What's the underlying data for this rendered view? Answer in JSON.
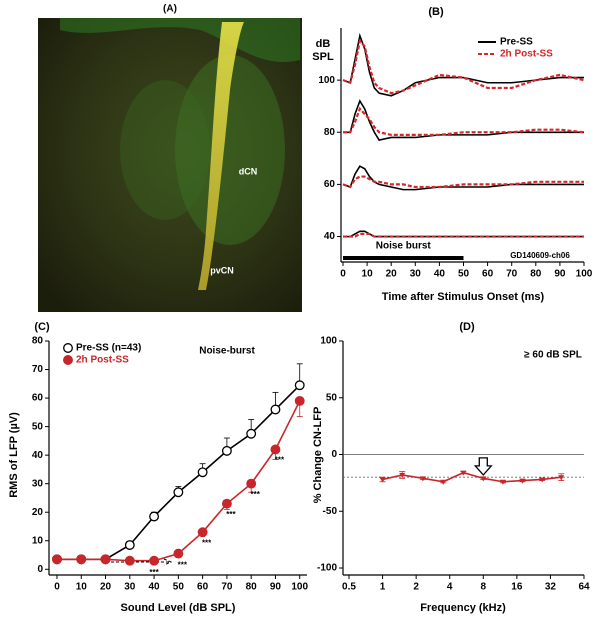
{
  "image_panel": {
    "label": "(A)",
    "annotations": [
      "dCN",
      "pvCN"
    ]
  },
  "chart_data": [
    {
      "type": "line",
      "panel": "(B)",
      "ylabel": [
        "dB",
        "SPL"
      ],
      "xlabel": "Time after Stimulus Onset (ms)",
      "x": [
        0,
        3,
        5,
        7,
        9,
        11,
        13,
        15,
        20,
        25,
        30,
        40,
        50,
        60,
        70,
        80,
        90,
        100
      ],
      "xlim": [
        0,
        100
      ],
      "xticks": [
        0,
        10,
        20,
        30,
        40,
        50,
        60,
        70,
        80,
        90,
        100
      ],
      "ylim": [
        31,
        120
      ],
      "yticks": [
        40,
        60,
        80,
        100
      ],
      "legend": "upper right",
      "stimulus": {
        "label": "Noise burst",
        "start": 0,
        "end": 50
      },
      "annotations": [
        {
          "text": "GD140609-ch06"
        }
      ],
      "series": [
        {
          "name": "Pre-SS",
          "color": "#000000",
          "values": [
            100,
            99,
            108,
            117,
            112,
            103,
            97,
            95,
            94,
            96,
            99,
            101,
            101,
            99,
            99,
            100,
            101,
            101
          ]
        },
        {
          "name": "2h Post-SS",
          "color": "#d9262a",
          "dashed": true,
          "values": [
            100,
            99,
            106,
            115,
            113,
            105,
            99,
            97,
            95,
            96,
            98,
            102,
            101,
            97,
            97,
            100,
            102,
            100
          ]
        },
        {
          "color": "#000000",
          "values": [
            80,
            80,
            87,
            92,
            89,
            84,
            80,
            77,
            78,
            78,
            78,
            79,
            79,
            79,
            80,
            80,
            80,
            80
          ]
        },
        {
          "color": "#d9262a",
          "dashed": true,
          "values": [
            80,
            80,
            84,
            89,
            87,
            85,
            82,
            80,
            79,
            79,
            79,
            79,
            80,
            80,
            80,
            81,
            81,
            80
          ]
        },
        {
          "color": "#000000",
          "values": [
            60,
            59,
            64,
            67,
            66,
            63,
            61,
            60,
            59,
            58,
            58,
            59,
            59,
            59,
            60,
            60,
            60,
            60
          ]
        },
        {
          "color": "#d9262a",
          "dashed": true,
          "values": [
            60,
            59,
            62,
            63,
            63,
            62,
            61,
            61,
            60,
            60,
            59,
            59,
            60,
            60,
            60,
            61,
            61,
            61
          ]
        },
        {
          "color": "#000000",
          "values": [
            40,
            40,
            41,
            42,
            42,
            41,
            40,
            40,
            40,
            40,
            40,
            40,
            40,
            40,
            40,
            40,
            40,
            40
          ]
        },
        {
          "color": "#d9262a",
          "dashed": true,
          "values": [
            40,
            40,
            40,
            41,
            41,
            41,
            40,
            40,
            40,
            40,
            40,
            40,
            40,
            40,
            40,
            40,
            40,
            40
          ]
        }
      ]
    },
    {
      "type": "line",
      "panel": "(C)",
      "ylabel": "RMS of LFP (µV)",
      "xlabel": "Sound Level (dB SPL)",
      "x": [
        0,
        10,
        20,
        30,
        40,
        50,
        60,
        70,
        80,
        90,
        100
      ],
      "xlim": [
        -3,
        103
      ],
      "xticks": [
        0,
        10,
        20,
        30,
        40,
        50,
        60,
        70,
        80,
        90,
        100
      ],
      "ylim": [
        -2,
        80
      ],
      "yticks": [
        0,
        10,
        20,
        30,
        40,
        50,
        60,
        70,
        80
      ],
      "legend": "upper left",
      "annotations": [
        {
          "text": "Noise-burst"
        },
        {
          "text": "***",
          "x": 40
        },
        {
          "text": "***",
          "x": 50
        },
        {
          "text": "***",
          "x": 60
        },
        {
          "text": "***",
          "x": 70
        },
        {
          "text": "***",
          "x": 80
        },
        {
          "text": "***",
          "x": 90
        }
      ],
      "series": [
        {
          "name": "Pre-SS (n=43)",
          "color": "#000000",
          "marker": "open",
          "error_side": "up",
          "values": [
            3.5,
            3.5,
            3.5,
            8.5,
            18.5,
            27,
            34,
            41.5,
            47.5,
            56,
            64.5
          ],
          "errors": [
            0.5,
            0.5,
            0.5,
            1,
            1.5,
            2,
            3,
            4.5,
            5,
            6,
            7.5
          ]
        },
        {
          "name": "2h Post-SS",
          "color": "#c8262a",
          "marker": "filled",
          "error_side": "down",
          "values": [
            3.5,
            3.5,
            3.5,
            3,
            3,
            5.5,
            13,
            23,
            30,
            42,
            59
          ],
          "errors": [
            0.5,
            0.5,
            0.5,
            0.5,
            0.5,
            0.5,
            1,
            2,
            3,
            3.5,
            5.5
          ]
        }
      ]
    },
    {
      "type": "line",
      "panel": "(D)",
      "ylabel": "% Change CN-LFP",
      "xlabel": "Frequency (kHz)",
      "xlog": true,
      "x": [
        1,
        1.5,
        2.3,
        3.5,
        5.3,
        8,
        12,
        18,
        27,
        40
      ],
      "xlim": [
        0.5,
        64
      ],
      "xticks": [
        0.5,
        1,
        2,
        4,
        8,
        16,
        32,
        64
      ],
      "ylim": [
        -100,
        100
      ],
      "yticks": [
        -100,
        -50,
        0,
        50,
        100
      ],
      "annotations": [
        {
          "text": "≥ 60 dB SPL"
        }
      ],
      "ref_line": -20,
      "arrow_x": 8,
      "series": [
        {
          "color": "#c8262a",
          "marker": "triangle",
          "error_side": "both",
          "values": [
            -22,
            -18,
            -21,
            -24,
            -16,
            -21,
            -24,
            -23,
            -22,
            -20
          ],
          "errors": [
            2,
            3,
            1,
            1,
            1,
            1,
            1,
            1,
            1,
            3
          ]
        }
      ]
    }
  ]
}
